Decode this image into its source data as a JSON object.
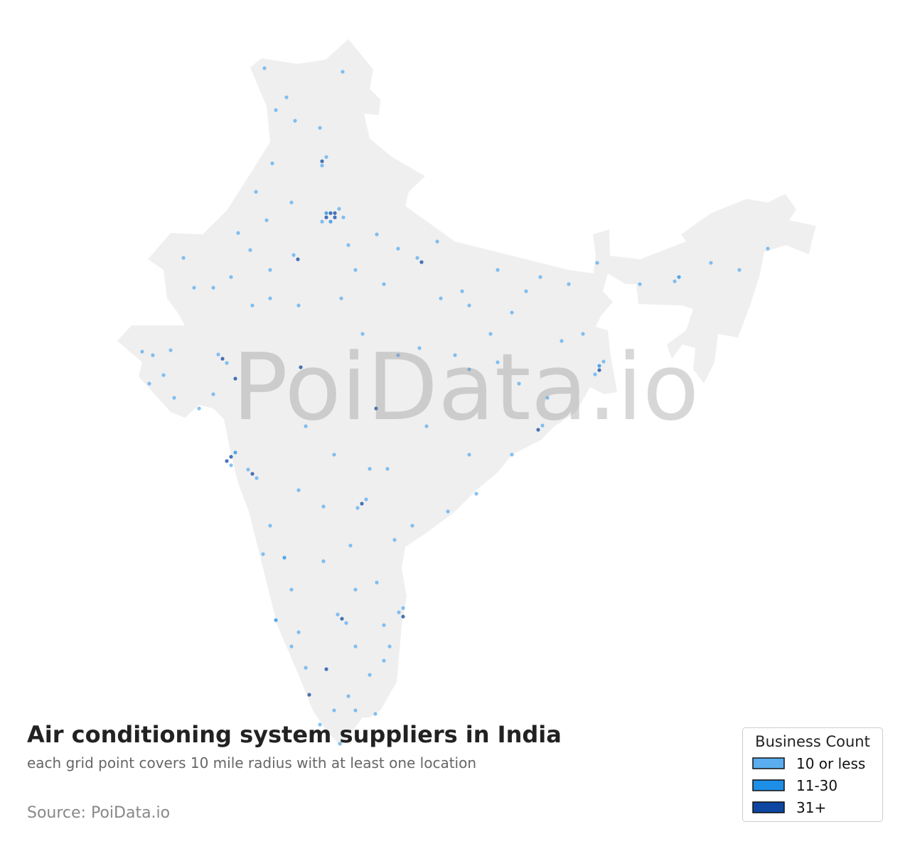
{
  "chart_data": {
    "type": "map",
    "title": "Air conditioning system suppliers in India",
    "subtitle": "each grid point covers 10 mile radius with at least one location",
    "source": "Source: PoiData.io",
    "watermark": "PoiData.io",
    "legend_title": "Business Count",
    "series": [
      {
        "name": "10 or less",
        "color": "#5aaef0",
        "points": [
          [
            77.51,
            29.83
          ],
          [
            76.79,
            29.29
          ],
          [
            77.69,
            29.47
          ],
          [
            76.79,
            31.66
          ],
          [
            76.97,
            32.02
          ],
          [
            75.59,
            27.88
          ],
          [
            80.81,
            27.76
          ],
          [
            88.67,
            23.38
          ],
          [
            88.31,
            22.84
          ],
          [
            72.41,
            23.68
          ],
          [
            72.77,
            23.32
          ],
          [
            72.95,
            19.0
          ],
          [
            73.67,
            18.82
          ],
          [
            74.03,
            18.46
          ],
          [
            78.29,
            17.2
          ],
          [
            78.65,
            17.56
          ],
          [
            77.45,
            12.7
          ],
          [
            77.81,
            12.34
          ],
          [
            80.03,
            12.79
          ],
          [
            80.21,
            12.97
          ],
          [
            86.09,
            20.68
          ],
          [
            91.67,
            26.77
          ],
          [
            74.36,
            35.77
          ],
          [
            77.66,
            35.62
          ],
          [
            74.84,
            34.0
          ],
          [
            75.29,
            34.54
          ],
          [
            75.65,
            33.55
          ],
          [
            76.7,
            33.25
          ],
          [
            74.69,
            31.75
          ],
          [
            74.0,
            30.55
          ],
          [
            75.5,
            30.1
          ],
          [
            74.45,
            29.35
          ],
          [
            73.25,
            28.81
          ],
          [
            73.76,
            28.09
          ],
          [
            74.6,
            27.25
          ],
          [
            72.95,
            26.95
          ],
          [
            72.2,
            26.5
          ],
          [
            71.39,
            26.5
          ],
          [
            70.94,
            27.76
          ],
          [
            69.2,
            23.8
          ],
          [
            69.65,
            23.65
          ],
          [
            70.4,
            23.86
          ],
          [
            70.1,
            22.81
          ],
          [
            69.5,
            22.45
          ],
          [
            70.55,
            21.85
          ],
          [
            71.6,
            21.4
          ],
          [
            72.2,
            22.0
          ],
          [
            73.85,
            25.75
          ],
          [
            74.6,
            26.05
          ],
          [
            75.8,
            25.75
          ],
          [
            77.6,
            26.05
          ],
          [
            78.5,
            24.55
          ],
          [
            80.0,
            23.65
          ],
          [
            80.9,
            23.95
          ],
          [
            82.4,
            23.65
          ],
          [
            83.0,
            23.05
          ],
          [
            84.2,
            23.35
          ],
          [
            85.1,
            22.45
          ],
          [
            86.3,
            21.85
          ],
          [
            86.9,
            24.25
          ],
          [
            87.8,
            24.55
          ],
          [
            87.2,
            26.65
          ],
          [
            86.0,
            26.95
          ],
          [
            84.2,
            27.25
          ],
          [
            82.7,
            26.35
          ],
          [
            81.8,
            26.05
          ],
          [
            79.4,
            26.65
          ],
          [
            78.2,
            27.25
          ],
          [
            77.9,
            28.3
          ],
          [
            79.1,
            28.75
          ],
          [
            80.0,
            28.15
          ],
          [
            81.65,
            28.45
          ],
          [
            83.0,
            25.75
          ],
          [
            84.8,
            25.45
          ],
          [
            85.4,
            26.35
          ],
          [
            83.9,
            24.55
          ],
          [
            88.4,
            27.55
          ],
          [
            90.2,
            26.65
          ],
          [
            93.2,
            27.55
          ],
          [
            94.4,
            27.25
          ],
          [
            95.6,
            28.15
          ],
          [
            76.1,
            20.65
          ],
          [
            77.3,
            19.45
          ],
          [
            78.8,
            18.85
          ],
          [
            79.55,
            18.85
          ],
          [
            81.2,
            20.65
          ],
          [
            83.0,
            19.45
          ],
          [
            84.8,
            19.45
          ],
          [
            83.3,
            17.8
          ],
          [
            82.1,
            17.05
          ],
          [
            80.6,
            16.45
          ],
          [
            79.85,
            15.85
          ],
          [
            75.8,
            17.95
          ],
          [
            74.6,
            16.45
          ],
          [
            74.3,
            15.25
          ],
          [
            75.5,
            13.75
          ],
          [
            76.85,
            14.95
          ],
          [
            77.99,
            15.61
          ],
          [
            76.85,
            17.26
          ],
          [
            78.2,
            13.75
          ],
          [
            79.1,
            14.05
          ],
          [
            79.4,
            12.25
          ],
          [
            79.64,
            11.35
          ],
          [
            78.8,
            10.15
          ],
          [
            77.9,
            9.25
          ],
          [
            77.3,
            8.65
          ],
          [
            76.7,
            8.05
          ],
          [
            77.54,
            7.24
          ],
          [
            78.2,
            8.65
          ],
          [
            79.04,
            8.5
          ],
          [
            75.8,
            11.95
          ],
          [
            75.5,
            11.35
          ],
          [
            76.1,
            10.45
          ],
          [
            78.2,
            11.35
          ],
          [
            79.4,
            10.75
          ]
        ]
      },
      {
        "name": "11-30",
        "color": "#1e8fe6",
        "points": [
          [
            76.97,
            29.65
          ],
          [
            77.15,
            29.29
          ],
          [
            88.49,
            23.2
          ],
          [
            73.13,
            19.54
          ],
          [
            91.85,
            26.95
          ],
          [
            75.2,
            15.1
          ],
          [
            74.84,
            12.46
          ]
        ]
      },
      {
        "name": "31+",
        "color": "#0d47a1",
        "points": [
          [
            77.15,
            29.65
          ],
          [
            77.33,
            29.65
          ],
          [
            76.97,
            29.47
          ],
          [
            77.33,
            29.47
          ],
          [
            76.79,
            31.84
          ],
          [
            75.77,
            27.7
          ],
          [
            80.99,
            27.58
          ],
          [
            88.49,
            23.02
          ],
          [
            72.59,
            23.5
          ],
          [
            73.13,
            22.66
          ],
          [
            72.95,
            19.36
          ],
          [
            72.77,
            19.18
          ],
          [
            73.85,
            18.64
          ],
          [
            78.47,
            17.38
          ],
          [
            79.07,
            21.4
          ],
          [
            75.89,
            23.14
          ],
          [
            77.63,
            12.52
          ],
          [
            80.21,
            12.61
          ],
          [
            76.97,
            10.39
          ],
          [
            76.25,
            9.31
          ],
          [
            85.91,
            20.5
          ]
        ]
      }
    ]
  }
}
